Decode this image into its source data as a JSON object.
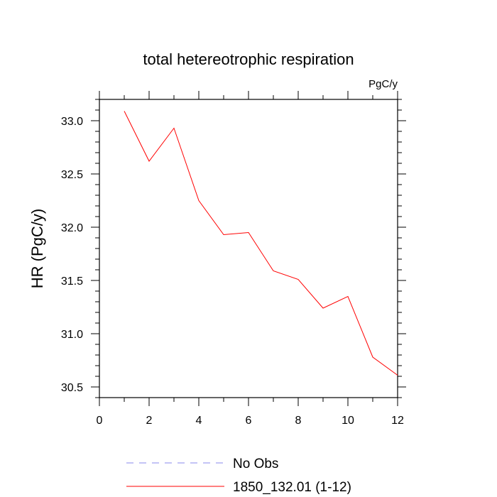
{
  "chart_data": {
    "type": "line",
    "title": "total hetereotrophic respiration",
    "units_label": "PgC/y",
    "xlabel": "",
    "ylabel": "HR  (PgC/y)",
    "xlim": [
      0,
      12
    ],
    "ylim": [
      30.4,
      33.2
    ],
    "x_ticks": [
      0,
      2,
      4,
      6,
      8,
      10,
      12
    ],
    "x_tick_labels": [
      "0",
      "2",
      "4",
      "6",
      "8",
      "10",
      "12"
    ],
    "y_ticks": [
      30.5,
      31.0,
      31.5,
      32.0,
      32.5,
      33.0
    ],
    "y_tick_labels": [
      "30.5",
      "31.0",
      "31.5",
      "32.0",
      "32.5",
      "33.0"
    ],
    "grid": false,
    "legend_position": "bottom",
    "series": [
      {
        "name": "1850_132.01 (1-12)",
        "color": "#ff0000",
        "style": "solid",
        "x": [
          1,
          2,
          3,
          4,
          5,
          6,
          7,
          8,
          9,
          10,
          11,
          12
        ],
        "values": [
          33.09,
          32.62,
          32.93,
          32.25,
          31.93,
          31.95,
          31.59,
          31.51,
          31.24,
          31.35,
          30.78,
          30.61
        ]
      }
    ],
    "legend": [
      {
        "name": "No Obs",
        "color": "#8888ee",
        "style": "dashed"
      },
      {
        "name": "1850_132.01 (1-12)",
        "color": "#ff0000",
        "style": "solid"
      }
    ]
  }
}
